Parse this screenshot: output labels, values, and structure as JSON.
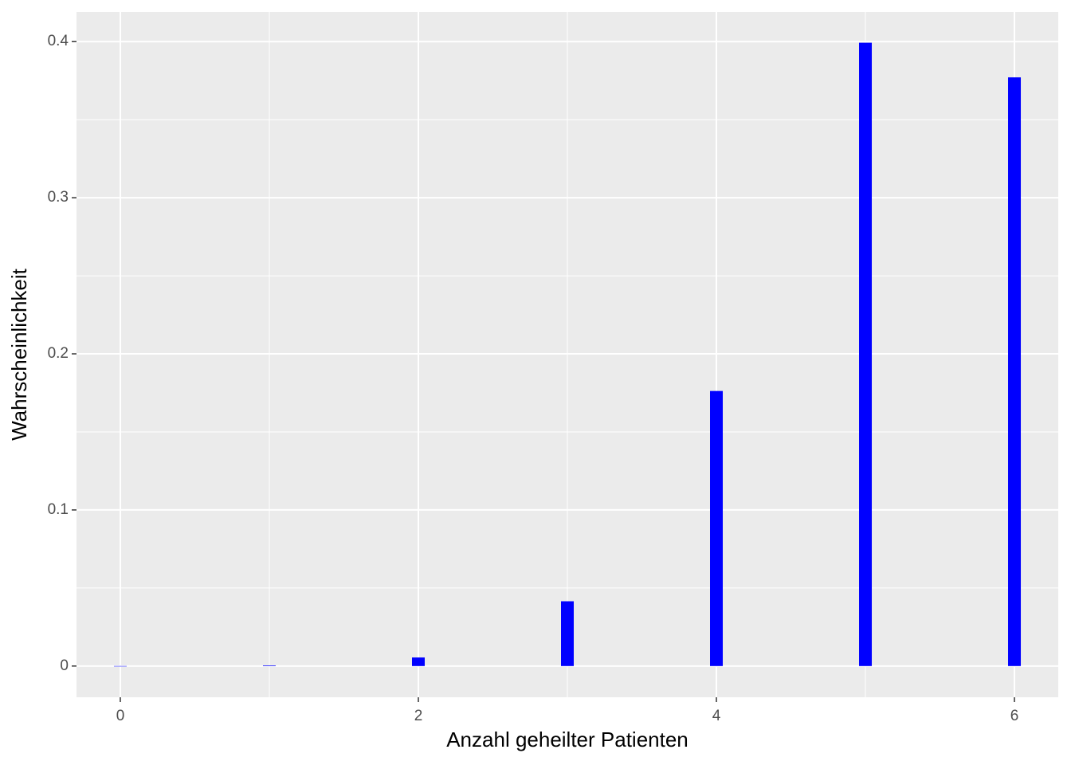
{
  "chart_data": {
    "type": "bar",
    "x_label": "Anzahl geheilter Patienten",
    "y_label": "Wahrscheinlichkeit",
    "x": [
      0,
      1,
      2,
      3,
      4,
      5,
      6
    ],
    "values": [
      1.14e-05,
      0.000387,
      0.00549,
      0.0415,
      0.1762,
      0.3993,
      0.3771
    ],
    "color": "#0000ff",
    "xlim": [
      -0.294,
      6.294
    ],
    "xticks": [
      0,
      2,
      4,
      6
    ],
    "ylim": [
      -0.02,
      0.419
    ],
    "yticks": [
      0.0,
      0.1,
      0.2,
      0.3,
      0.4
    ],
    "grid": true
  }
}
